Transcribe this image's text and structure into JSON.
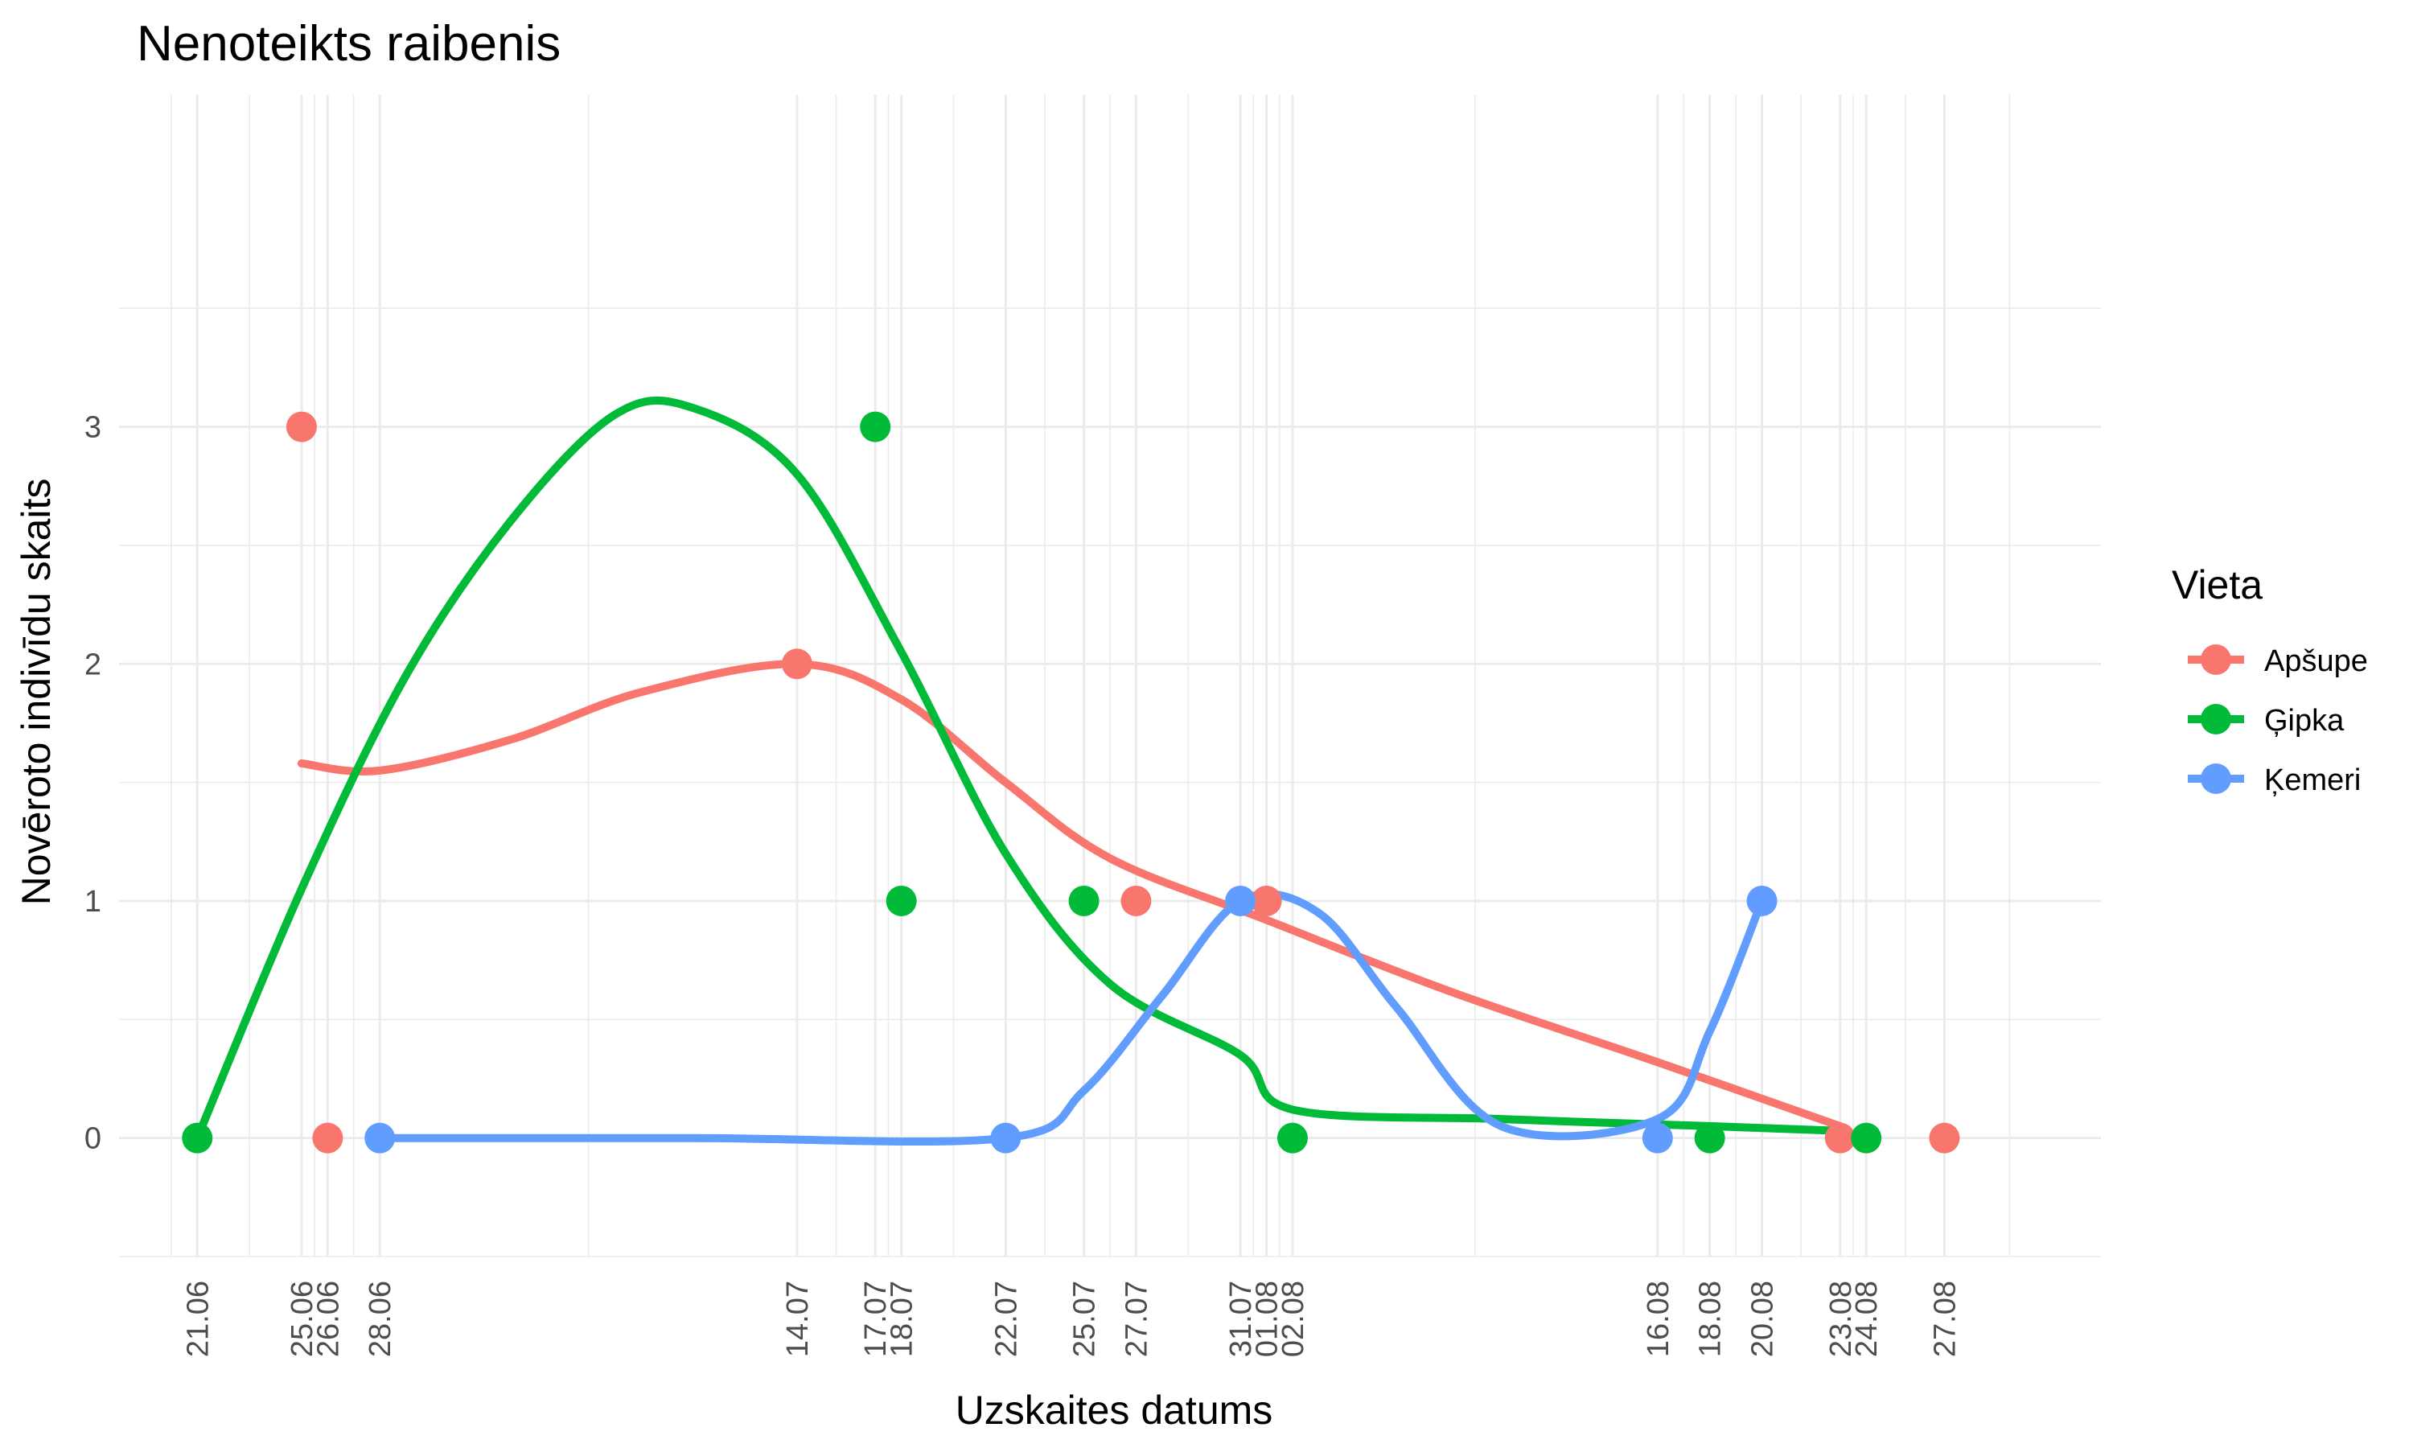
{
  "chart_data": {
    "type": "line",
    "title": "Nenoteikts raibenis",
    "xlabel": "Uzskaites datums",
    "ylabel": "Novēroto indivīdu skaits",
    "x_type": "date",
    "year": 2020,
    "xlim": [
      "2020-06-18",
      "2020-09-02"
    ],
    "ylim": [
      -0.5,
      4.4
    ],
    "y_ticks": [
      0,
      1,
      2,
      3
    ],
    "x_ticks": [
      "2020-06-21",
      "2020-06-25",
      "2020-06-26",
      "2020-06-28",
      "2020-07-14",
      "2020-07-17",
      "2020-07-18",
      "2020-07-22",
      "2020-07-25",
      "2020-07-27",
      "2020-07-31",
      "2020-08-01",
      "2020-08-02",
      "2020-08-16",
      "2020-08-18",
      "2020-08-20",
      "2020-08-23",
      "2020-08-24",
      "2020-08-27"
    ],
    "x_tick_labels": [
      "21.06",
      "25.06",
      "26.06",
      "28.06",
      "14.07",
      "17.07",
      "18.07",
      "22.07",
      "25.07",
      "27.07",
      "31.07",
      "01.08",
      "02.08",
      "16.08",
      "18.08",
      "20.08",
      "23.08",
      "24.08",
      "27.08"
    ],
    "grid": true,
    "legend_title": "Vieta",
    "legend_position": "right",
    "series": [
      {
        "name": "Apšupe",
        "color": "#F8766D",
        "points": [
          {
            "x": "2020-06-25",
            "y": 3
          },
          {
            "x": "2020-06-26",
            "y": 0
          },
          {
            "x": "2020-07-14",
            "y": 2
          },
          {
            "x": "2020-07-27",
            "y": 1
          },
          {
            "x": "2020-08-01",
            "y": 1
          },
          {
            "x": "2020-08-23",
            "y": 0
          },
          {
            "x": "2020-08-27",
            "y": 0
          }
        ],
        "smooth": [
          {
            "x": "2020-06-25",
            "y": 1.58
          },
          {
            "x": "2020-06-28",
            "y": 1.55
          },
          {
            "x": "2020-07-03",
            "y": 1.68
          },
          {
            "x": "2020-07-08",
            "y": 1.88
          },
          {
            "x": "2020-07-14",
            "y": 2.0
          },
          {
            "x": "2020-07-18",
            "y": 1.85
          },
          {
            "x": "2020-07-22",
            "y": 1.5
          },
          {
            "x": "2020-07-26",
            "y": 1.18
          },
          {
            "x": "2020-08-01",
            "y": 0.92
          },
          {
            "x": "2020-08-08",
            "y": 0.62
          },
          {
            "x": "2020-08-16",
            "y": 0.32
          },
          {
            "x": "2020-08-23",
            "y": 0.05
          }
        ]
      },
      {
        "name": "Ģipka",
        "color": "#00BA38",
        "points": [
          {
            "x": "2020-06-21",
            "y": 0
          },
          {
            "x": "2020-07-17",
            "y": 3
          },
          {
            "x": "2020-07-18",
            "y": 1
          },
          {
            "x": "2020-07-25",
            "y": 1
          },
          {
            "x": "2020-08-02",
            "y": 0
          },
          {
            "x": "2020-08-18",
            "y": 0
          },
          {
            "x": "2020-08-24",
            "y": 0
          }
        ],
        "smooth": [
          {
            "x": "2020-06-21",
            "y": 0.0
          },
          {
            "x": "2020-06-25",
            "y": 1.05
          },
          {
            "x": "2020-06-29",
            "y": 1.95
          },
          {
            "x": "2020-07-03",
            "y": 2.6
          },
          {
            "x": "2020-07-07",
            "y": 3.05
          },
          {
            "x": "2020-07-10",
            "y": 3.08
          },
          {
            "x": "2020-07-14",
            "y": 2.8
          },
          {
            "x": "2020-07-18",
            "y": 2.05
          },
          {
            "x": "2020-07-22",
            "y": 1.2
          },
          {
            "x": "2020-07-26",
            "y": 0.65
          },
          {
            "x": "2020-07-31",
            "y": 0.35
          },
          {
            "x": "2020-08-02",
            "y": 0.12
          },
          {
            "x": "2020-08-10",
            "y": 0.08
          },
          {
            "x": "2020-08-18",
            "y": 0.05
          },
          {
            "x": "2020-08-23",
            "y": 0.03
          }
        ]
      },
      {
        "name": "Ķemeri",
        "color": "#619CFF",
        "points": [
          {
            "x": "2020-06-28",
            "y": 0
          },
          {
            "x": "2020-07-22",
            "y": 0
          },
          {
            "x": "2020-07-31",
            "y": 1
          },
          {
            "x": "2020-08-16",
            "y": 0
          },
          {
            "x": "2020-08-20",
            "y": 1
          }
        ],
        "smooth": [
          {
            "x": "2020-06-28",
            "y": 0.0
          },
          {
            "x": "2020-07-10",
            "y": 0.0
          },
          {
            "x": "2020-07-22",
            "y": 0.0
          },
          {
            "x": "2020-07-25",
            "y": 0.2
          },
          {
            "x": "2020-07-28",
            "y": 0.6
          },
          {
            "x": "2020-07-31",
            "y": 1.0
          },
          {
            "x": "2020-08-03",
            "y": 0.95
          },
          {
            "x": "2020-08-06",
            "y": 0.55
          },
          {
            "x": "2020-08-10",
            "y": 0.05
          },
          {
            "x": "2020-08-16",
            "y": 0.08
          },
          {
            "x": "2020-08-18",
            "y": 0.45
          },
          {
            "x": "2020-08-20",
            "y": 1.0
          }
        ]
      }
    ]
  }
}
